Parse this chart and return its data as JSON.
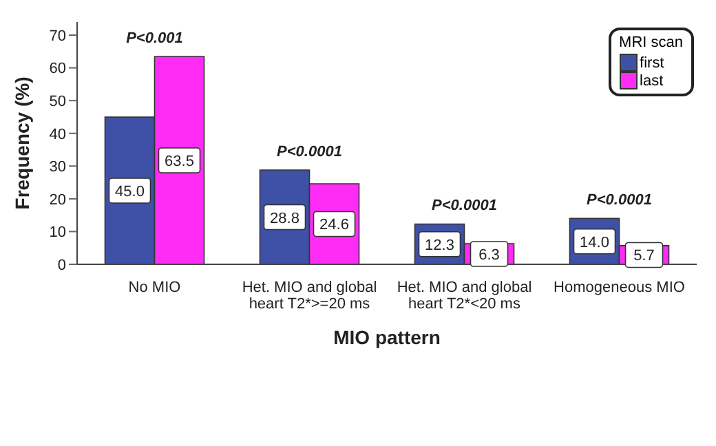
{
  "chart_data": {
    "type": "bar",
    "xlabel": "MIO pattern",
    "ylabel": "Frequency (%)",
    "legend_title": "MRI scan",
    "legend": "top right",
    "grid": false,
    "categories": [
      "No MIO",
      "Het. MIO and global heart T2*>=20 ms",
      "Het. MIO and global heart T2*<20 ms",
      "Homogeneous MIO"
    ],
    "series": [
      {
        "name": "first",
        "color": "#3f51a6",
        "values": [
          45.0,
          28.8,
          12.3,
          14.0
        ],
        "value_labels": [
          "45.0",
          "28.8",
          "12.3",
          "14.0"
        ]
      },
      {
        "name": "last",
        "color": "#ff2cf5",
        "values": [
          63.5,
          24.6,
          6.3,
          5.7
        ],
        "value_labels": [
          "63.5",
          "24.6",
          "6.3",
          "5.7"
        ]
      }
    ],
    "ylim": [
      0,
      74
    ],
    "yticks": [
      0,
      10,
      20,
      30,
      40,
      50,
      60,
      70
    ],
    "annotations": [
      {
        "text": "P<0.001",
        "x": "No MIO",
        "y": 63.5
      },
      {
        "text": "P<0.0001",
        "x": "Het. MIO and global heart T2*>=20 ms",
        "y": 28.8
      },
      {
        "text": "P<0.0001",
        "x": "Het. MIO and global heart T2*<20 ms",
        "y": 12.3
      },
      {
        "text": "P<0.0001",
        "x": "Homogeneous MIO",
        "y": 14.0
      }
    ]
  }
}
